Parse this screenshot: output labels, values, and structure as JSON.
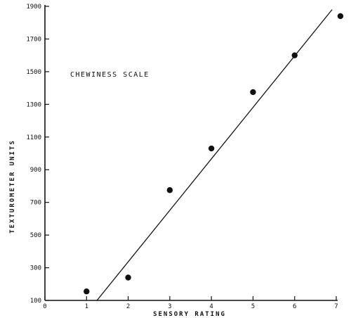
{
  "chart_data": {
    "type": "scatter",
    "xlabel": "SENSORY  RATING",
    "ylabel": "TEXTUROMETER UNITS",
    "annotation": "CHEWINESS  SCALE",
    "xlim": [
      0,
      7
    ],
    "ylim": [
      100,
      1900
    ],
    "x_ticks": [
      0,
      1,
      2,
      3,
      4,
      5,
      6,
      7
    ],
    "y_ticks": [
      100,
      300,
      500,
      700,
      900,
      1100,
      1300,
      1500,
      1700,
      1900
    ],
    "x_tick_labels": [
      "0",
      "1",
      "2",
      "3",
      "4",
      "5",
      "6",
      "7"
    ],
    "y_tick_labels": [
      "100",
      "300",
      "500",
      "700",
      "900",
      "1100",
      "1300",
      "1500",
      "1700",
      "1900"
    ],
    "points": [
      {
        "x": 1.0,
        "y": 155
      },
      {
        "x": 2.0,
        "y": 240
      },
      {
        "x": 3.0,
        "y": 775
      },
      {
        "x": 4.0,
        "y": 1030
      },
      {
        "x": 5.0,
        "y": 1375
      },
      {
        "x": 6.0,
        "y": 1600
      },
      {
        "x": 7.1,
        "y": 1840
      }
    ],
    "fit_line": [
      {
        "x": 1.25,
        "y": 100
      },
      {
        "x": 6.9,
        "y": 1880
      }
    ],
    "grid": false
  }
}
